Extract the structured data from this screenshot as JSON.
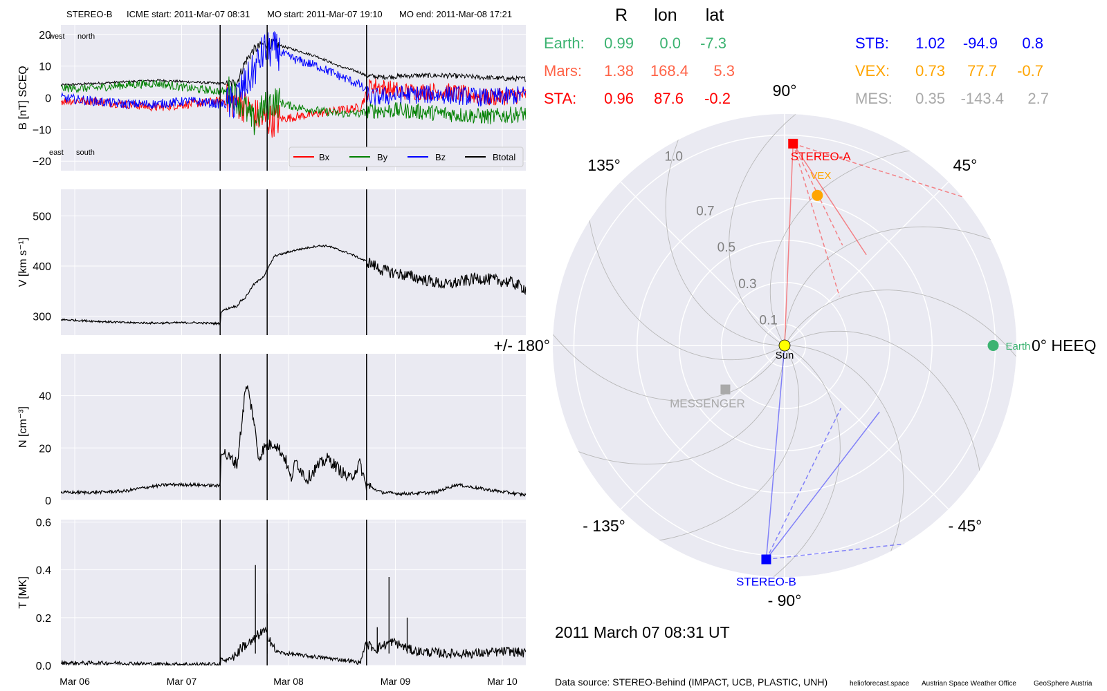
{
  "colors": {
    "panel_bg": "#eaeaf2",
    "grid": "#ffffff",
    "bx": "#ff0000",
    "by": "#008000",
    "bz": "#0000ff",
    "btotal": "#000000",
    "earth": "#3cb371",
    "mars": "#ff6347",
    "sta": "#ff0000",
    "stb": "#0000ff",
    "vex": "#ffa500",
    "mes": "#a9a9a9",
    "sun": "#ffff00"
  },
  "header": {
    "spacecraft": "STEREO-B",
    "icme_start": "ICME start: 2011-Mar-07 08:31",
    "mo_start": "MO start: 2011-Mar-07 19:10",
    "mo_end": "MO end: 2011-Mar-08 17:21"
  },
  "chart_data": [
    {
      "type": "line",
      "panel": "magnetic_field",
      "ylabel": "B [nT] SCEQ",
      "ylim": [
        -23,
        23
      ],
      "yticks": [
        {
          "v": 20,
          "label": "20"
        },
        {
          "v": 10,
          "label": "10"
        },
        {
          "v": 0,
          "label": "0"
        },
        {
          "v": -10,
          "label": "−10"
        },
        {
          "v": -20,
          "label": "−20"
        }
      ],
      "xlim": [
        0.0,
        4.35
      ],
      "annotations": {
        "top_left": "west",
        "top_right": "north",
        "bottom_left": "east",
        "bottom_right": "south"
      },
      "legend": {
        "placement": "lower right",
        "entries": [
          "Bx",
          "By",
          "Bz",
          "Btotal"
        ]
      },
      "grid": true,
      "series": [
        {
          "name": "Btotal",
          "color_key": "btotal",
          "noise": 0.4,
          "x": [
            0,
            0.3,
            0.6,
            0.9,
            1.2,
            1.5,
            1.6,
            1.65,
            1.72,
            1.8,
            1.9,
            2.0,
            2.1,
            2.2,
            2.4,
            2.6,
            2.8,
            2.85,
            3.0,
            3.3,
            3.6,
            3.9,
            4.2,
            4.35
          ],
          "y": [
            4,
            4.5,
            5,
            5.5,
            5,
            4.5,
            4.5,
            5,
            11,
            15,
            17,
            17,
            16,
            15,
            13,
            10,
            8,
            7,
            6.5,
            7,
            7,
            6.5,
            6,
            6
          ]
        },
        {
          "name": "Bx",
          "color_key": "bx",
          "noise": 1.4,
          "x": [
            0,
            0.3,
            0.6,
            0.9,
            1.2,
            1.5,
            1.6,
            1.7,
            1.8,
            1.9,
            2.0,
            2.2,
            2.4,
            2.6,
            2.8,
            2.9,
            3.2,
            3.6,
            4.0,
            4.35
          ],
          "y": [
            -1,
            -1,
            -2,
            -3,
            -2,
            -1,
            -1,
            -2,
            -5,
            -7,
            -7,
            -6,
            -5,
            -4,
            -3,
            4,
            2,
            2,
            0,
            1
          ]
        },
        {
          "name": "By",
          "color_key": "by",
          "noise": 1.3,
          "x": [
            0,
            0.3,
            0.6,
            0.9,
            1.2,
            1.5,
            1.6,
            1.7,
            1.8,
            1.9,
            2.0,
            2.2,
            2.4,
            2.6,
            2.8,
            2.9,
            3.2,
            3.6,
            4.0,
            4.35
          ],
          "y": [
            3,
            3,
            4,
            4.5,
            3,
            2,
            2,
            -2,
            -8,
            -3,
            -1,
            -3,
            -4,
            -5,
            -5,
            -4,
            -4,
            -5,
            -6,
            -5
          ]
        },
        {
          "name": "Bz",
          "color_key": "bz",
          "noise": 1.5,
          "x": [
            0,
            0.3,
            0.6,
            0.9,
            1.2,
            1.5,
            1.6,
            1.7,
            1.8,
            1.9,
            2.0,
            2.2,
            2.4,
            2.6,
            2.8,
            2.9,
            3.2,
            3.6,
            4.0,
            4.35
          ],
          "y": [
            0,
            -1,
            -2,
            -2,
            -1,
            -2,
            -2,
            3,
            8,
            15,
            15,
            12,
            10,
            7,
            4,
            0,
            1,
            1,
            0,
            1
          ]
        }
      ]
    },
    {
      "type": "line",
      "panel": "speed",
      "ylabel": "V [km s⁻¹]",
      "ylim": [
        262,
        553
      ],
      "yticks": [
        {
          "v": 500,
          "label": "500"
        },
        {
          "v": 400,
          "label": "400"
        },
        {
          "v": 300,
          "label": "300"
        }
      ],
      "xlim": [
        0.0,
        4.35
      ],
      "grid": true,
      "series": [
        {
          "name": "V",
          "color_key": "btotal",
          "noise": 2,
          "x": [
            0,
            0.3,
            0.6,
            0.9,
            1.2,
            1.49,
            1.5,
            1.6,
            1.65,
            1.68,
            1.72,
            1.8,
            1.9,
            2.0,
            2.2,
            2.4,
            2.5,
            2.6,
            2.7,
            2.8,
            2.9,
            3.0,
            3.3,
            3.6,
            3.9,
            4.2,
            4.35
          ],
          "y": [
            293,
            290,
            287,
            286,
            287,
            285,
            310,
            318,
            320,
            330,
            335,
            362,
            380,
            420,
            432,
            440,
            440,
            432,
            425,
            415,
            405,
            392,
            378,
            362,
            376,
            368,
            355
          ]
        }
      ]
    },
    {
      "type": "line",
      "panel": "density",
      "ylabel": "N [cm⁻³]",
      "ylim": [
        0,
        56
      ],
      "yticks": [
        {
          "v": 40,
          "label": "40"
        },
        {
          "v": 20,
          "label": "20"
        },
        {
          "v": 0,
          "label": "0"
        }
      ],
      "xlim": [
        0.0,
        4.35
      ],
      "grid": true,
      "series": [
        {
          "name": "N",
          "color_key": "btotal",
          "noise": 0.6,
          "x": [
            0,
            0.3,
            0.6,
            0.8,
            1.0,
            1.2,
            1.49,
            1.5,
            1.55,
            1.65,
            1.72,
            1.74,
            1.8,
            1.85,
            1.9,
            2.0,
            2.1,
            2.15,
            2.2,
            2.3,
            2.4,
            2.5,
            2.6,
            2.7,
            2.8,
            2.85,
            3.0,
            3.2,
            3.5,
            3.7,
            4.0,
            4.35
          ],
          "y": [
            3,
            3,
            3.5,
            5,
            6,
            6,
            5.5,
            20,
            17,
            14,
            40,
            44,
            32,
            16,
            20,
            22,
            16,
            8,
            15,
            8,
            13,
            16,
            12,
            8,
            14,
            6,
            3,
            2.5,
            3,
            6,
            4,
            2
          ]
        }
      ]
    },
    {
      "type": "line",
      "panel": "temperature",
      "ylabel": "T [MK]",
      "ylim": [
        0,
        0.61
      ],
      "yticks": [
        {
          "v": 0.6,
          "label": "0.6"
        },
        {
          "v": 0.4,
          "label": "0.4"
        },
        {
          "v": 0.2,
          "label": "0.2"
        },
        {
          "v": 0.0,
          "label": "0.0"
        }
      ],
      "xlim": [
        0.0,
        4.35
      ],
      "xticks": [
        {
          "v": 0.13,
          "label": "Mar 06"
        },
        {
          "v": 1.13,
          "label": "Mar 07"
        },
        {
          "v": 2.13,
          "label": "Mar 08"
        },
        {
          "v": 3.13,
          "label": "Mar 09"
        },
        {
          "v": 4.13,
          "label": "Mar 10"
        }
      ],
      "grid": true,
      "series": [
        {
          "name": "T",
          "color_key": "btotal",
          "noise": 0.008,
          "x": [
            0,
            0.5,
            1.0,
            1.49,
            1.5,
            1.55,
            1.65,
            1.7,
            1.8,
            1.85,
            1.9,
            1.95,
            2.0,
            2.1,
            2.3,
            2.5,
            2.7,
            2.8,
            2.85,
            2.95,
            3.1,
            3.3,
            3.6,
            3.9,
            4.2,
            4.35
          ],
          "y": [
            0.01,
            0.01,
            0.005,
            0.005,
            0.03,
            0.02,
            0.05,
            0.08,
            0.1,
            0.13,
            0.14,
            0.12,
            0.06,
            0.05,
            0.04,
            0.03,
            0.02,
            0.01,
            0.09,
            0.07,
            0.1,
            0.06,
            0.05,
            0.05,
            0.06,
            0.05
          ]
        }
      ],
      "spikes": [
        [
          1.82,
          0.42
        ],
        [
          1.93,
          0.3
        ],
        [
          3.07,
          0.37
        ],
        [
          3.24,
          0.2
        ],
        [
          2.96,
          0.16
        ]
      ]
    }
  ],
  "event_lines": [
    {
      "name": "ICME start",
      "x": 1.49
    },
    {
      "name": "MO start",
      "x": 1.93
    },
    {
      "name": "MO end",
      "x": 2.86
    }
  ],
  "positions_table": {
    "headers": [
      "R",
      "lon",
      "lat"
    ],
    "left_rows": [
      {
        "label": "Earth:",
        "r": "0.99",
        "lon": "0.0",
        "lat": "-7.3",
        "color_key": "earth"
      },
      {
        "label": "Mars:",
        "r": "1.38",
        "lon": "168.4",
        "lat": "5.3",
        "color_key": "mars"
      },
      {
        "label": "STA:",
        "r": "0.96",
        "lon": "87.6",
        "lat": "-0.2",
        "color_key": "sta"
      }
    ],
    "right_rows": [
      {
        "label": "STB:",
        "r": "1.02",
        "lon": "-94.9",
        "lat": "0.8",
        "color_key": "stb"
      },
      {
        "label": "VEX:",
        "r": "0.73",
        "lon": "77.7",
        "lat": "-0.7",
        "color_key": "vex"
      },
      {
        "label": "MES:",
        "r": "0.35",
        "lon": "-143.4",
        "lat": "2.7",
        "color_key": "mes"
      }
    ]
  },
  "polar_plot": {
    "type": "polar",
    "r_max": 1.1,
    "r_ticks": [
      {
        "v": 0.1,
        "label": "0.1"
      },
      {
        "v": 0.3,
        "label": "0.3"
      },
      {
        "v": 0.5,
        "label": "0.5"
      },
      {
        "v": 0.7,
        "label": "0.7"
      },
      {
        "v": 1.0,
        "label": "1.0"
      }
    ],
    "r_tick_angle_deg": 120,
    "angle_labels": [
      {
        "deg": 0,
        "label": "0° HEEQ"
      },
      {
        "deg": 45,
        "label": "45°"
      },
      {
        "deg": 90,
        "label": "90°"
      },
      {
        "deg": 135,
        "label": "135°"
      },
      {
        "deg": 180,
        "label": "+/- 180°"
      },
      {
        "deg": 225,
        "label": "- 135°"
      },
      {
        "deg": 270,
        "label": "- 90°"
      },
      {
        "deg": 315,
        "label": "- 45°"
      }
    ],
    "bodies": [
      {
        "name": "Sun",
        "r": 0.0,
        "lon": 0.0,
        "color_key": "sun",
        "marker": "circle"
      },
      {
        "name": "Earth",
        "r": 0.99,
        "lon": 0.0,
        "color_key": "earth",
        "marker": "circle"
      },
      {
        "name": "STEREO-A",
        "r": 0.96,
        "lon": 87.6,
        "color_key": "sta",
        "marker": "square"
      },
      {
        "name": "VEX",
        "r": 0.73,
        "lon": 77.7,
        "color_key": "vex",
        "marker": "circle"
      },
      {
        "name": "STEREO-B",
        "r": 1.02,
        "lon": -94.9,
        "color_key": "stb",
        "marker": "square"
      },
      {
        "name": "MESSENGER",
        "r": 0.35,
        "lon": -143.4,
        "color_key": "mes",
        "marker": "square"
      }
    ]
  },
  "date_label": "2011 March 07  08:31 UT",
  "footer": {
    "source": "Data source: STEREO-Behind (IMPACT, UCB, PLASTIC, UNH)",
    "credit_1": "helioforecast.space",
    "credit_2": "Austrian Space Weather Office",
    "credit_3": "GeoSphere Austria"
  }
}
